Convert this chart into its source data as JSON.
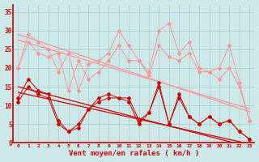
{
  "x": [
    0,
    1,
    2,
    3,
    4,
    5,
    6,
    7,
    8,
    9,
    10,
    11,
    12,
    13,
    14,
    15,
    16,
    17,
    18,
    19,
    20,
    21,
    22,
    23
  ],
  "series_light1": [
    20,
    29,
    27,
    25,
    19,
    24,
    14,
    21,
    22,
    24,
    30,
    26,
    22,
    19,
    30,
    32,
    24,
    27,
    20,
    19,
    20,
    26,
    16,
    6
  ],
  "series_light2": [
    20,
    27,
    24,
    23,
    24,
    14,
    22,
    17,
    19,
    22,
    26,
    22,
    22,
    18,
    26,
    23,
    22,
    24,
    19,
    19,
    17,
    20,
    15,
    6
  ],
  "trend_light1": [
    29.0,
    28.1,
    27.2,
    26.3,
    25.4,
    24.5,
    23.6,
    22.7,
    21.8,
    20.9,
    20.0,
    19.1,
    18.2,
    17.3,
    16.4,
    15.5,
    14.6,
    13.7,
    12.8,
    11.9,
    11.0,
    10.1,
    9.2,
    8.3
  ],
  "trend_light2": [
    27.5,
    26.7,
    25.9,
    25.1,
    24.3,
    23.5,
    22.7,
    21.9,
    21.1,
    20.3,
    19.5,
    18.7,
    17.9,
    17.1,
    16.3,
    15.5,
    14.7,
    13.9,
    13.1,
    12.3,
    11.5,
    10.7,
    9.9,
    9.1
  ],
  "series_dark1": [
    11,
    15,
    13,
    12,
    5,
    3,
    4,
    9,
    11,
    12,
    12,
    11,
    5,
    8,
    15,
    5,
    12,
    7,
    5,
    7,
    5,
    6,
    3,
    1
  ],
  "series_dark2": [
    12,
    17,
    14,
    13,
    6,
    3,
    5,
    9,
    12,
    13,
    12,
    12,
    6,
    8,
    16,
    5,
    13,
    7,
    5,
    7,
    5,
    6,
    3,
    1
  ],
  "trend_dark1": [
    15.0,
    14.3,
    13.6,
    12.9,
    12.2,
    11.5,
    10.8,
    10.1,
    9.4,
    8.7,
    8.0,
    7.3,
    6.6,
    5.9,
    5.2,
    4.5,
    3.8,
    3.1,
    2.4,
    1.7,
    1.0,
    0.3,
    -0.4,
    -1.1
  ],
  "trend_dark2": [
    13.5,
    12.9,
    12.3,
    11.7,
    11.1,
    10.5,
    9.9,
    9.3,
    8.7,
    8.1,
    7.5,
    6.9,
    6.3,
    5.7,
    5.1,
    4.5,
    3.9,
    3.3,
    2.7,
    2.1,
    1.5,
    0.9,
    0.3,
    -0.3
  ],
  "color_light": "#ff9999",
  "color_dark": "#cc0000",
  "bg_color": "#cce8e8",
  "grid_color": "#aacccc",
  "xlabel": "Vent moyen/en rafales ( km/h )",
  "yticks": [
    0,
    5,
    10,
    15,
    20,
    25,
    30,
    35
  ],
  "ylim": [
    0,
    37
  ],
  "xlim": [
    -0.5,
    23.5
  ]
}
